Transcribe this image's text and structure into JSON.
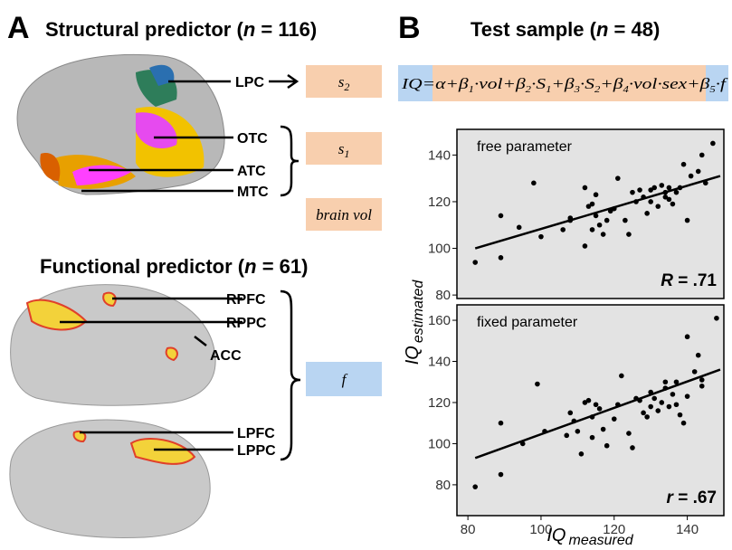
{
  "panel_a": {
    "letter": "A",
    "structural_title": {
      "pre": "Structural predictor (",
      "n": "n",
      "post": " = 116)"
    },
    "functional_title": {
      "pre": "Functional predictor (",
      "n": "n",
      "post": " = 61)"
    },
    "regions": [
      "LPC",
      "OTC",
      "ATC",
      "MTC",
      "RPFC",
      "RPPC",
      "ACC",
      "LPFC",
      "LPPC"
    ],
    "boxes": [
      {
        "text": "s",
        "sub": "2"
      },
      {
        "text": "s",
        "sub": "1"
      },
      {
        "text": "brain vol"
      },
      {
        "text": "f"
      }
    ]
  },
  "panel_b": {
    "letter": "B",
    "title": {
      "pre": "Test sample (",
      "n": "n",
      "post": " = 48)"
    },
    "formula": [
      {
        "text": "IQ"
      },
      {
        "text": "=α+β"
      },
      {
        "text": "1",
        "sub": true
      },
      {
        "text": "·vol+β"
      },
      {
        "text": "2",
        "sub": true
      },
      {
        "text": "·S"
      },
      {
        "text": "1",
        "sub": true
      },
      {
        "text": "+β"
      },
      {
        "text": "3",
        "sub": true
      },
      {
        "text": "·S"
      },
      {
        "text": "2",
        "sub": true
      },
      {
        "text": "+β"
      },
      {
        "text": "4",
        "sub": true
      },
      {
        "text": "·vol·sex+β"
      },
      {
        "text": "5",
        "sub": true
      },
      {
        "text": "·f"
      }
    ],
    "y_label": {
      "main": "IQ",
      "sub": "estimated"
    },
    "x_label": {
      "main": "IQ",
      "sub": "measured"
    }
  },
  "chart_data": [
    {
      "type": "scatter",
      "annotation": "free parameter",
      "stat": {
        "symbol": "R",
        "text": " = .71"
      },
      "color": "#000000",
      "background": "#e3e3e3",
      "x": [
        82,
        89,
        89,
        94,
        98,
        100,
        106,
        108,
        108,
        112,
        112,
        113,
        114,
        114,
        115,
        115,
        116,
        117,
        118,
        119,
        120,
        121,
        123,
        124,
        125,
        126,
        127,
        128,
        129,
        130,
        130,
        131,
        132,
        133,
        134,
        134,
        135,
        135,
        136,
        137,
        138,
        139,
        140,
        141,
        143,
        144,
        145,
        147
      ],
      "y": [
        94,
        114,
        96,
        109,
        128,
        105,
        108,
        112,
        113,
        101,
        126,
        118,
        119,
        108,
        123,
        114,
        110,
        106,
        112,
        116,
        117,
        130,
        112,
        106,
        124,
        120,
        125,
        122,
        115,
        125,
        120,
        126,
        118,
        127,
        122,
        124,
        126,
        121,
        119,
        124,
        126,
        136,
        112,
        131,
        133,
        140,
        128,
        145
      ],
      "fit": {
        "x": [
          82,
          149
        ],
        "y": [
          100,
          131
        ]
      },
      "xlim": [
        77,
        150
      ],
      "ylim": [
        78.5,
        151
      ],
      "yticks": [
        80,
        100,
        120,
        140
      ]
    },
    {
      "type": "scatter",
      "annotation": "fixed parameter",
      "stat": {
        "symbol": "r",
        "text": " = .67"
      },
      "color": "#000000",
      "background": "#e3e3e3",
      "x": [
        82,
        89,
        89,
        95,
        99,
        101,
        107,
        108,
        109,
        110,
        111,
        112,
        113,
        114,
        114,
        115,
        116,
        117,
        118,
        120,
        121,
        122,
        124,
        125,
        126,
        127,
        128,
        129,
        130,
        130,
        131,
        132,
        133,
        134,
        134,
        135,
        136,
        137,
        137,
        138,
        139,
        140,
        140,
        142,
        143,
        144,
        144,
        148
      ],
      "y": [
        79,
        110,
        85,
        100,
        129,
        106,
        104,
        115,
        111,
        106,
        95,
        120,
        121,
        113,
        103,
        119,
        117,
        107,
        99,
        112,
        119,
        133,
        105,
        98,
        122,
        121,
        115,
        113,
        118,
        125,
        122,
        116,
        120,
        127,
        130,
        118,
        124,
        130,
        119,
        114,
        110,
        152,
        123,
        135,
        143,
        128,
        131,
        161
      ],
      "fit": {
        "x": [
          82,
          149
        ],
        "y": [
          93,
          136
        ]
      },
      "xlim": [
        77,
        150
      ],
      "ylim": [
        65,
        167.5
      ],
      "yticks": [
        80,
        100,
        120,
        140,
        160
      ],
      "xticks": [
        80,
        100,
        120,
        140
      ]
    }
  ]
}
